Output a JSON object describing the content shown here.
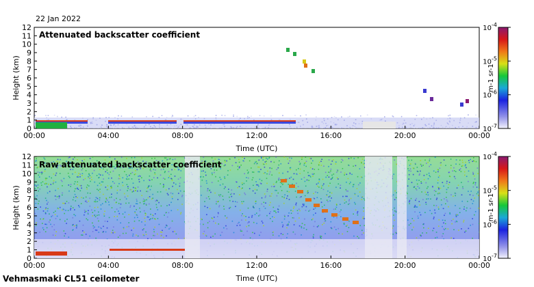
{
  "date_label": "22 Jan 2022",
  "footer_label": "Vehmasmaki CL51 ceilometer",
  "chart_data": [
    {
      "type": "heatmap",
      "title": "Attenuated backscatter coefficient",
      "xlabel": "Time (UTC)",
      "ylabel": "Height (km)",
      "x_ticks": [
        "00:00",
        "04:00",
        "08:00",
        "12:00",
        "16:00",
        "20:00",
        "00:00"
      ],
      "y_ticks": [
        "0",
        "1",
        "2",
        "3",
        "4",
        "5",
        "6",
        "7",
        "8",
        "9",
        "10",
        "11",
        "12"
      ],
      "ylim": [
        0,
        12
      ],
      "colorbar": {
        "scale": "log",
        "range": [
          1e-07,
          0.0001
        ],
        "tick_labels": [
          "10-7",
          "10-6",
          "10-5",
          "10-4"
        ],
        "unit": "m-1 sr-1"
      }
    },
    {
      "type": "heatmap",
      "title": "Raw attenuated backscatter coefficient",
      "xlabel": "Time (UTC)",
      "ylabel": "Height (km)",
      "x_ticks": [
        "00:00",
        "04:00",
        "08:00",
        "12:00",
        "16:00",
        "20:00",
        "00:00"
      ],
      "y_ticks": [
        "0",
        "1",
        "2",
        "3",
        "4",
        "5",
        "6",
        "7",
        "8",
        "9",
        "10",
        "11",
        "12"
      ],
      "ylim": [
        0,
        12
      ],
      "colorbar": {
        "scale": "log",
        "range": [
          1e-07,
          0.0001
        ],
        "tick_labels": [
          "10-7",
          "10-6",
          "10-5",
          "10-4"
        ],
        "unit": "m-1 sr-1"
      }
    }
  ]
}
